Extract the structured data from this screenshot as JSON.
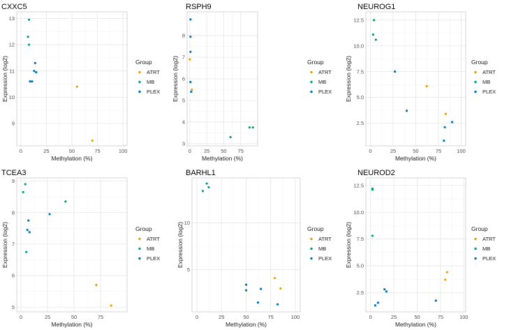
{
  "legend": {
    "title": "Group",
    "items": [
      {
        "label": "ATRT",
        "color": "#E69F00"
      },
      {
        "label": "MB",
        "color": "#009E73"
      },
      {
        "label": "PLEX",
        "color": "#0072B2"
      }
    ]
  },
  "chart_data": [
    {
      "type": "scatter",
      "title": "CXXC5",
      "xlabel": "Methylation (%)",
      "ylabel": "Expression (log2)",
      "xlim": [
        -4,
        104
      ],
      "ylim": [
        8.15,
        13.25
      ],
      "xticks": [
        0,
        25,
        50,
        75,
        100
      ],
      "yticks": [
        9,
        10,
        11,
        12,
        13
      ],
      "grid": true,
      "legend_position": "right",
      "series": [
        {
          "name": "ATRT",
          "color": "#E69F00",
          "points": [
            [
              55,
              10.4
            ],
            [
              70,
              8.35
            ]
          ]
        },
        {
          "name": "MB",
          "color": "#009E73",
          "points": [
            [
              8,
              12.95
            ],
            [
              7,
              12.3
            ],
            [
              8,
              12.0
            ]
          ]
        },
        {
          "name": "PLEX",
          "color": "#0072B2",
          "points": [
            [
              14,
              11.3
            ],
            [
              13,
              11.0
            ],
            [
              15,
              10.95
            ],
            [
              9,
              10.6
            ],
            [
              11,
              10.6
            ]
          ]
        }
      ]
    },
    {
      "type": "scatter",
      "title": "RSPH9",
      "xlabel": "Methylation (%)",
      "ylabel": "Expression (log2)",
      "xlim": [
        -4,
        100
      ],
      "ylim": [
        2.9,
        9.1
      ],
      "xticks": [
        0,
        25,
        50,
        75
      ],
      "yticks": [
        3,
        4,
        5,
        6,
        7,
        8
      ],
      "grid": true,
      "legend_position": "right",
      "series": [
        {
          "name": "ATRT",
          "color": "#E69F00",
          "points": [
            [
              0,
              6.9
            ],
            [
              3,
              5.5
            ]
          ]
        },
        {
          "name": "MB",
          "color": "#009E73",
          "points": [
            [
              60,
              3.3
            ],
            [
              88,
              3.75
            ],
            [
              93,
              3.75
            ]
          ]
        },
        {
          "name": "PLEX",
          "color": "#0072B2",
          "points": [
            [
              1,
              8.75
            ],
            [
              1,
              7.95
            ],
            [
              1,
              7.25
            ],
            [
              1,
              5.85
            ],
            [
              2,
              5.4
            ]
          ]
        }
      ]
    },
    {
      "type": "scatter",
      "title": "NEUROG1",
      "xlabel": "Methylation (%)",
      "ylabel": "Expression (log2)",
      "xlim": [
        -5,
        105
      ],
      "ylim": [
        0.3,
        13.3
      ],
      "xticks": [
        0,
        25,
        50,
        75,
        100
      ],
      "yticks": [
        2.5,
        5.0,
        7.5,
        10.0,
        12.5
      ],
      "grid": true,
      "legend_position": "right",
      "series": [
        {
          "name": "ATRT",
          "color": "#E69F00",
          "points": [
            [
              62,
              6.1
            ],
            [
              83,
              3.4
            ]
          ]
        },
        {
          "name": "MB",
          "color": "#009E73",
          "points": [
            [
              4,
              12.5
            ],
            [
              3,
              11.1
            ],
            [
              6,
              10.6
            ]
          ]
        },
        {
          "name": "PLEX",
          "color": "#0072B2",
          "points": [
            [
              27,
              7.5
            ],
            [
              40,
              3.7
            ],
            [
              90,
              2.6
            ],
            [
              82,
              2.1
            ],
            [
              81,
              0.8
            ]
          ]
        }
      ]
    },
    {
      "type": "scatter",
      "title": "TCEA3",
      "xlabel": "Methylation (%)",
      "ylabel": "Expression (log2)",
      "xlim": [
        -4,
        100
      ],
      "ylim": [
        4.85,
        9.1
      ],
      "xticks": [
        0,
        25,
        50,
        75
      ],
      "yticks": [
        5,
        6,
        7,
        8,
        9
      ],
      "grid": true,
      "legend_position": "right",
      "series": [
        {
          "name": "ATRT",
          "color": "#E69F00",
          "points": [
            [
              71,
              5.7
            ],
            [
              85,
              5.05
            ]
          ]
        },
        {
          "name": "MB",
          "color": "#009E73",
          "points": [
            [
              4,
              8.9
            ],
            [
              2,
              8.65
            ],
            [
              42,
              8.35
            ],
            [
              5,
              6.75
            ]
          ]
        },
        {
          "name": "PLEX",
          "color": "#0072B2",
          "points": [
            [
              27,
              7.95
            ],
            [
              7,
              7.75
            ],
            [
              6,
              7.45
            ],
            [
              8,
              7.38
            ]
          ]
        }
      ]
    },
    {
      "type": "scatter",
      "title": "BARHL1",
      "xlabel": "Methylation (%)",
      "ylabel": "Expression (log2)",
      "xlim": [
        -5,
        105
      ],
      "ylim": [
        0.5,
        14.8
      ],
      "xticks": [
        0,
        25,
        50,
        75,
        100
      ],
      "yticks": [
        5,
        10
      ],
      "grid": true,
      "legend_position": "right",
      "series": [
        {
          "name": "ATRT",
          "color": "#E69F00",
          "points": [
            [
              79,
              4.1
            ],
            [
              85,
              3.0
            ]
          ]
        },
        {
          "name": "MB",
          "color": "#009E73",
          "points": [
            [
              10,
              14.2
            ],
            [
              6,
              13.4
            ],
            [
              12,
              13.8
            ]
          ]
        },
        {
          "name": "PLEX",
          "color": "#0072B2",
          "points": [
            [
              50,
              3.4
            ],
            [
              50,
              2.8
            ],
            [
              65,
              2.95
            ],
            [
              62,
              1.5
            ],
            [
              82,
              1.3
            ]
          ]
        }
      ]
    },
    {
      "type": "scatter",
      "title": "NEUROD2",
      "xlabel": "Methylation (%)",
      "ylabel": "Expression (log2)",
      "xlim": [
        -5,
        102
      ],
      "ylim": [
        0.7,
        13.2
      ],
      "xticks": [
        0,
        25,
        50,
        75,
        100
      ],
      "yticks": [
        2.5,
        5.0,
        7.5,
        10.0,
        12.5
      ],
      "grid": true,
      "legend_position": "right",
      "series": [
        {
          "name": "ATRT",
          "color": "#E69F00",
          "points": [
            [
              82,
              4.4
            ],
            [
              80,
              3.7
            ]
          ]
        },
        {
          "name": "MB",
          "color": "#009E73",
          "points": [
            [
              2,
              12.2
            ],
            [
              2,
              12.1
            ],
            [
              2,
              7.8
            ]
          ]
        },
        {
          "name": "PLEX",
          "color": "#0072B2",
          "points": [
            [
              15,
              2.8
            ],
            [
              17,
              2.6
            ],
            [
              8,
              1.55
            ],
            [
              5,
              1.3
            ],
            [
              70,
              1.75
            ]
          ]
        }
      ]
    }
  ]
}
